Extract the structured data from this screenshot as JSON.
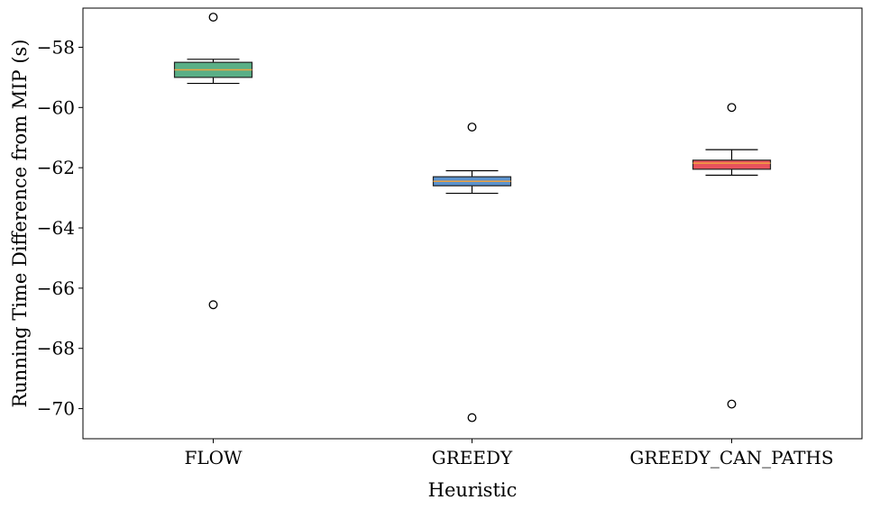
{
  "chart_data": {
    "type": "box",
    "title": "",
    "xlabel": "Heuristic",
    "ylabel": "Running Time Difference from MIP (s)",
    "ylim": [
      -71,
      -56.7
    ],
    "yticks": [
      -70,
      -68,
      -66,
      -64,
      -62,
      -60,
      -58
    ],
    "categories": [
      "FLOW",
      "GREEDY",
      "GREEDY_CAN_PATHS"
    ],
    "boxes": [
      {
        "category": "FLOW",
        "whisker_low": -59.2,
        "q1": -59.0,
        "median": -58.75,
        "q3": -58.5,
        "whisker_high": -58.4,
        "outliers": [
          -57.0,
          -66.55
        ],
        "color": "#5aaf86"
      },
      {
        "category": "GREEDY",
        "whisker_low": -62.85,
        "q1": -62.6,
        "median": -62.45,
        "q3": -62.3,
        "whisker_high": -62.1,
        "outliers": [
          -60.65,
          -70.3
        ],
        "color": "#5b92cd"
      },
      {
        "category": "GREEDY_CAN_PATHS",
        "whisker_low": -62.25,
        "q1": -62.05,
        "median": -61.85,
        "q3": -61.75,
        "whisker_high": -61.4,
        "outliers": [
          -60.0,
          -69.85
        ],
        "color": "#e8525c"
      }
    ],
    "median_color": "#f0a340",
    "grid": false,
    "legend": "none"
  }
}
